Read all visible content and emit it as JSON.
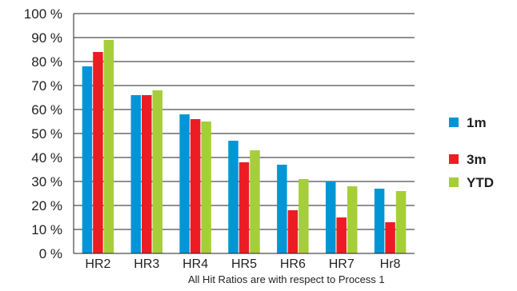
{
  "chart_data": {
    "type": "bar",
    "categories": [
      "HR2",
      "HR3",
      "HR4",
      "HR5",
      "HR6",
      "HR7",
      "Hr8"
    ],
    "series": [
      {
        "name": "1m",
        "color": "#0096d6",
        "values": [
          78,
          66,
          58,
          47,
          37,
          30,
          27
        ]
      },
      {
        "name": "3m",
        "color": "#ed1c24",
        "values": [
          84,
          66,
          56,
          38,
          18,
          15,
          13
        ]
      },
      {
        "name": "YTD",
        "color": "#a6ce39",
        "values": [
          89,
          68,
          55,
          43,
          31,
          28,
          26
        ]
      }
    ],
    "ylim": [
      0,
      100
    ],
    "yticks": [
      0,
      10,
      20,
      30,
      40,
      50,
      60,
      70,
      80,
      90,
      100
    ],
    "ytick_labels": [
      "0 %",
      "10 %",
      "20 %",
      "30 %",
      "40 %",
      "50 %",
      "60 %",
      "70 %",
      "80 %",
      "90 %",
      "100 %"
    ],
    "grid": true,
    "legend_position": "right",
    "annotation": "All Hit Ratios are with respect to Process 1"
  }
}
